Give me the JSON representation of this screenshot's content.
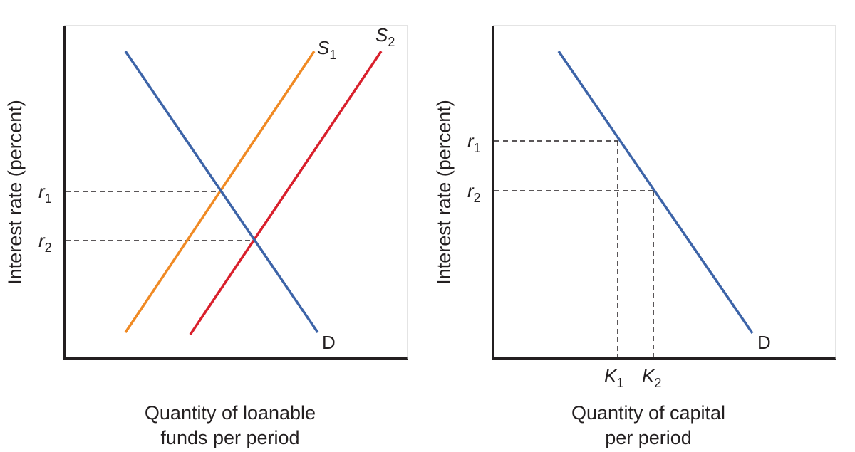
{
  "colors": {
    "demand": "#3d64a8",
    "supply1": "#f08a24",
    "supply2": "#d9202c",
    "axis": "#231f20"
  },
  "left_panel": {
    "ylabel": "Interest rate (percent)",
    "xlabel_line1": "Quantity of loanable",
    "xlabel_line2": "funds per period",
    "r1": {
      "main": "r",
      "sub": "1"
    },
    "r2": {
      "main": "r",
      "sub": "2"
    },
    "s1": {
      "main": "S",
      "sub": "1"
    },
    "s2": {
      "main": "S",
      "sub": "2"
    },
    "demand_label": "D"
  },
  "right_panel": {
    "ylabel": "Interest rate (percent)",
    "xlabel_line1": "Quantity of capital",
    "xlabel_line2": "per period",
    "r1": {
      "main": "r",
      "sub": "1"
    },
    "r2": {
      "main": "r",
      "sub": "2"
    },
    "k1": {
      "main": "K",
      "sub": "1"
    },
    "k2": {
      "main": "K",
      "sub": "2"
    },
    "demand_label": "D"
  }
}
